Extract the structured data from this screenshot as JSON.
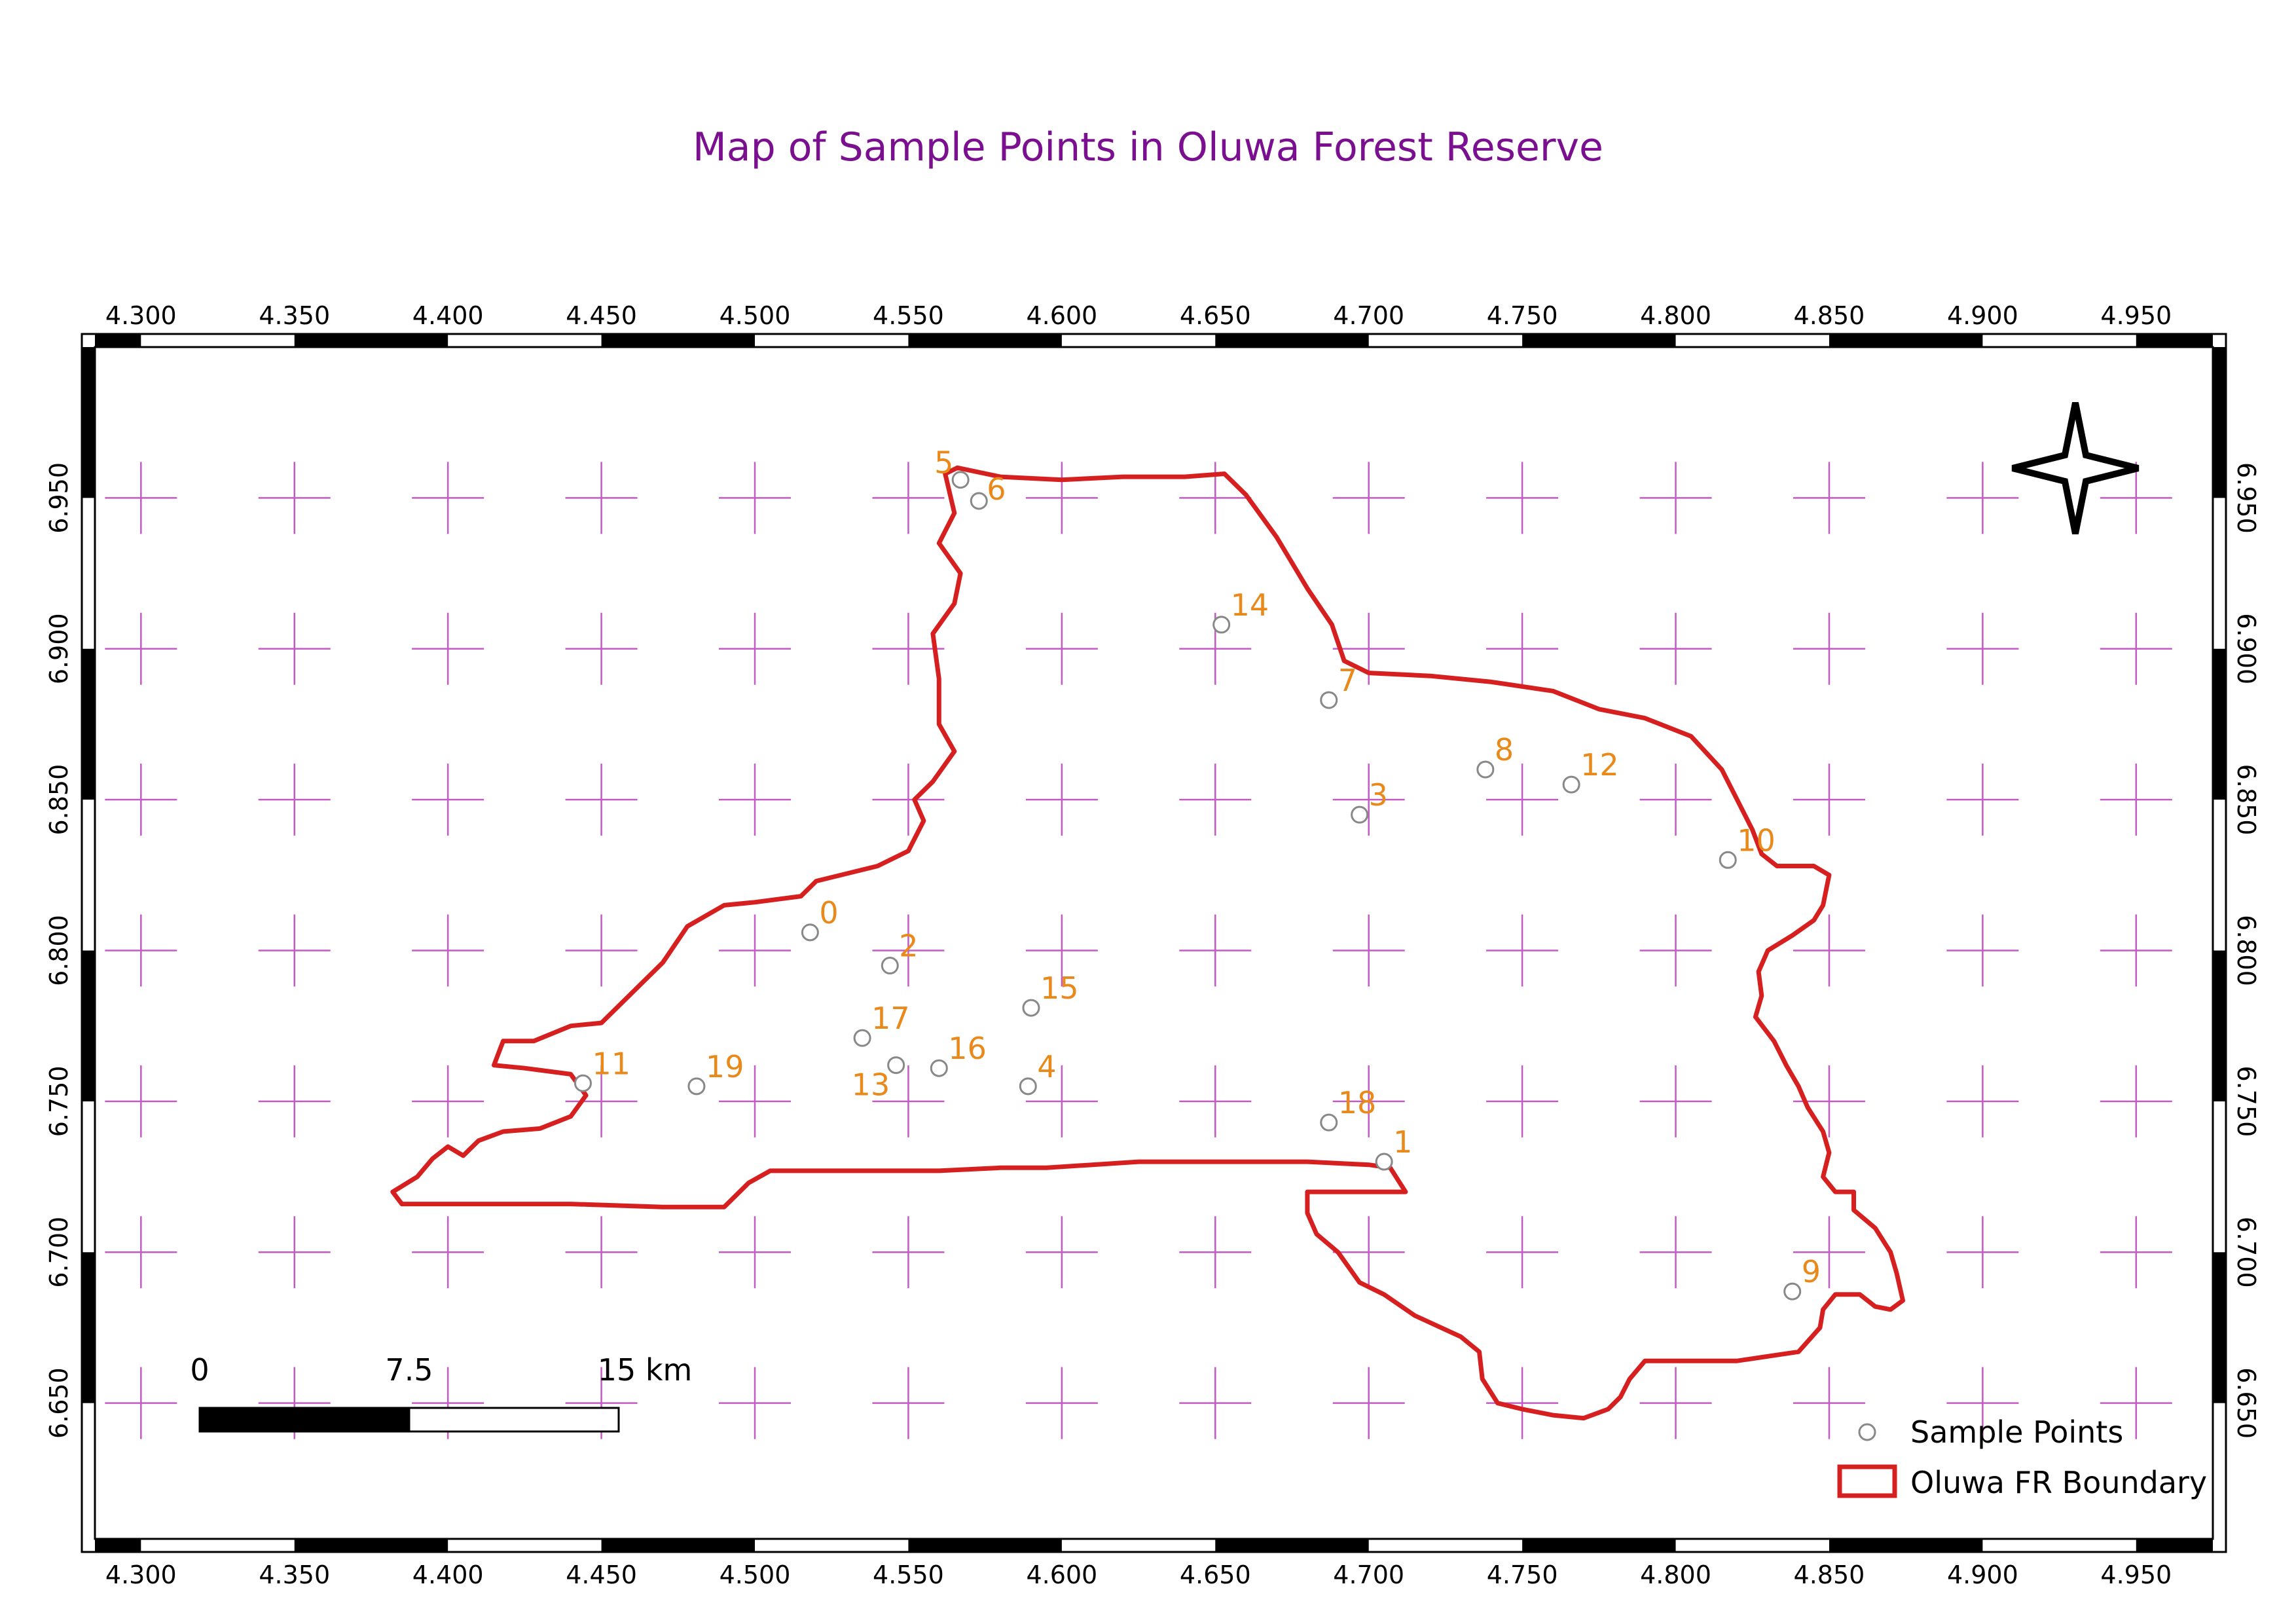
{
  "title": "Map of Sample Points in Oluwa Forest Reserve",
  "colors": {
    "title": "#7a0f8f",
    "boundary": "#d62020",
    "grid": "#c45ac4",
    "label": "#e8891a",
    "point_stroke": "#888888"
  },
  "x_ticks": [
    "4.300",
    "4.350",
    "4.400",
    "4.450",
    "4.500",
    "4.550",
    "4.600",
    "4.650",
    "4.700",
    "4.750",
    "4.800",
    "4.850",
    "4.900",
    "4.950"
  ],
  "y_ticks": [
    "6.950",
    "6.900",
    "6.850",
    "6.800",
    "6.750",
    "6.700",
    "6.650"
  ],
  "extent": {
    "lon": [
      4.285,
      4.975
    ],
    "lat": [
      6.605,
      7.0
    ]
  },
  "sample_points": [
    {
      "id": "0",
      "lon": 4.518,
      "lat": 6.806
    },
    {
      "id": "1",
      "lon": 4.705,
      "lat": 6.73
    },
    {
      "id": "2",
      "lon": 4.544,
      "lat": 6.795
    },
    {
      "id": "3",
      "lon": 4.697,
      "lat": 6.845
    },
    {
      "id": "4",
      "lon": 4.589,
      "lat": 6.755
    },
    {
      "id": "5",
      "lon": 4.567,
      "lat": 6.956
    },
    {
      "id": "6",
      "lon": 4.573,
      "lat": 6.949
    },
    {
      "id": "7",
      "lon": 4.687,
      "lat": 6.883
    },
    {
      "id": "8",
      "lon": 4.738,
      "lat": 6.86
    },
    {
      "id": "9",
      "lon": 4.838,
      "lat": 6.687
    },
    {
      "id": "10",
      "lon": 4.817,
      "lat": 6.83
    },
    {
      "id": "11",
      "lon": 4.444,
      "lat": 6.756
    },
    {
      "id": "12",
      "lon": 4.766,
      "lat": 6.855
    },
    {
      "id": "13",
      "lon": 4.546,
      "lat": 6.762
    },
    {
      "id": "14",
      "lon": 4.652,
      "lat": 6.908
    },
    {
      "id": "15",
      "lon": 4.59,
      "lat": 6.781
    },
    {
      "id": "16",
      "lon": 4.56,
      "lat": 6.761
    },
    {
      "id": "17",
      "lon": 4.535,
      "lat": 6.771
    },
    {
      "id": "18",
      "lon": 4.687,
      "lat": 6.743
    },
    {
      "id": "19",
      "lon": 4.481,
      "lat": 6.755
    }
  ],
  "boundary": [
    [
      4.562,
      6.958
    ],
    [
      4.566,
      6.96
    ],
    [
      4.58,
      6.957
    ],
    [
      4.6,
      6.956
    ],
    [
      4.62,
      6.957
    ],
    [
      4.64,
      6.957
    ],
    [
      4.653,
      6.958
    ],
    [
      4.66,
      6.951
    ],
    [
      4.67,
      6.937
    ],
    [
      4.68,
      6.92
    ],
    [
      4.688,
      6.908
    ],
    [
      4.692,
      6.896
    ],
    [
      4.7,
      6.892
    ],
    [
      4.72,
      6.891
    ],
    [
      4.74,
      6.889
    ],
    [
      4.76,
      6.886
    ],
    [
      4.775,
      6.88
    ],
    [
      4.79,
      6.877
    ],
    [
      4.805,
      6.871
    ],
    [
      4.815,
      6.86
    ],
    [
      4.82,
      6.85
    ],
    [
      4.825,
      6.84
    ],
    [
      4.828,
      6.832
    ],
    [
      4.833,
      6.828
    ],
    [
      4.845,
      6.828
    ],
    [
      4.85,
      6.825
    ],
    [
      4.848,
      6.815
    ],
    [
      4.845,
      6.81
    ],
    [
      4.838,
      6.805
    ],
    [
      4.83,
      6.8
    ],
    [
      4.827,
      6.793
    ],
    [
      4.828,
      6.785
    ],
    [
      4.826,
      6.778
    ],
    [
      4.832,
      6.77
    ],
    [
      4.836,
      6.762
    ],
    [
      4.84,
      6.755
    ],
    [
      4.843,
      6.748
    ],
    [
      4.848,
      6.74
    ],
    [
      4.85,
      6.733
    ],
    [
      4.848,
      6.725
    ],
    [
      4.852,
      6.72
    ],
    [
      4.858,
      6.72
    ],
    [
      4.858,
      6.714
    ],
    [
      4.865,
      6.708
    ],
    [
      4.87,
      6.7
    ],
    [
      4.872,
      6.693
    ],
    [
      4.874,
      6.684
    ],
    [
      4.87,
      6.681
    ],
    [
      4.865,
      6.682
    ],
    [
      4.86,
      6.686
    ],
    [
      4.852,
      6.686
    ],
    [
      4.848,
      6.681
    ],
    [
      4.847,
      6.675
    ],
    [
      4.84,
      6.667
    ],
    [
      4.82,
      6.664
    ],
    [
      4.805,
      6.664
    ],
    [
      4.79,
      6.664
    ],
    [
      4.785,
      6.658
    ],
    [
      4.782,
      6.652
    ],
    [
      4.778,
      6.648
    ],
    [
      4.77,
      6.645
    ],
    [
      4.76,
      6.646
    ],
    [
      4.75,
      6.648
    ],
    [
      4.742,
      6.65
    ],
    [
      4.737,
      6.658
    ],
    [
      4.736,
      6.667
    ],
    [
      4.73,
      6.672
    ],
    [
      4.715,
      6.679
    ],
    [
      4.705,
      6.686
    ],
    [
      4.697,
      6.69
    ],
    [
      4.69,
      6.7
    ],
    [
      4.683,
      6.706
    ],
    [
      4.68,
      6.713
    ],
    [
      4.68,
      6.72
    ],
    [
      4.712,
      6.72
    ],
    [
      4.707,
      6.728
    ],
    [
      4.7,
      6.729
    ],
    [
      4.68,
      6.73
    ],
    [
      4.66,
      6.73
    ],
    [
      4.64,
      6.73
    ],
    [
      4.625,
      6.73
    ],
    [
      4.61,
      6.729
    ],
    [
      4.595,
      6.728
    ],
    [
      4.58,
      6.728
    ],
    [
      4.56,
      6.727
    ],
    [
      4.54,
      6.727
    ],
    [
      4.52,
      6.727
    ],
    [
      4.505,
      6.727
    ],
    [
      4.498,
      6.723
    ],
    [
      4.49,
      6.715
    ],
    [
      4.47,
      6.715
    ],
    [
      4.44,
      6.716
    ],
    [
      4.42,
      6.716
    ],
    [
      4.4,
      6.716
    ],
    [
      4.385,
      6.716
    ],
    [
      4.382,
      6.72
    ],
    [
      4.39,
      6.725
    ],
    [
      4.395,
      6.731
    ],
    [
      4.4,
      6.735
    ],
    [
      4.405,
      6.732
    ],
    [
      4.41,
      6.737
    ],
    [
      4.418,
      6.74
    ],
    [
      4.43,
      6.741
    ],
    [
      4.44,
      6.745
    ],
    [
      4.445,
      6.752
    ],
    [
      4.44,
      6.759
    ],
    [
      4.425,
      6.761
    ],
    [
      4.415,
      6.762
    ],
    [
      4.418,
      6.77
    ],
    [
      4.428,
      6.77
    ],
    [
      4.44,
      6.775
    ],
    [
      4.45,
      6.776
    ],
    [
      4.46,
      6.786
    ],
    [
      4.47,
      6.796
    ],
    [
      4.478,
      6.808
    ],
    [
      4.49,
      6.815
    ],
    [
      4.5,
      6.816
    ],
    [
      4.515,
      6.818
    ],
    [
      4.52,
      6.823
    ],
    [
      4.54,
      6.828
    ],
    [
      4.55,
      6.833
    ],
    [
      4.555,
      6.843
    ],
    [
      4.552,
      6.85
    ],
    [
      4.558,
      6.856
    ],
    [
      4.565,
      6.866
    ],
    [
      4.56,
      6.875
    ],
    [
      4.56,
      6.89
    ],
    [
      4.558,
      6.905
    ],
    [
      4.565,
      6.915
    ],
    [
      4.567,
      6.925
    ],
    [
      4.56,
      6.935
    ],
    [
      4.565,
      6.945
    ],
    [
      4.562,
      6.958
    ]
  ],
  "legend": {
    "points_label": "Sample Points",
    "boundary_label": "Oluwa FR Boundary"
  },
  "scale_bar": {
    "labels": [
      "0",
      "7.5",
      "15 km"
    ]
  }
}
